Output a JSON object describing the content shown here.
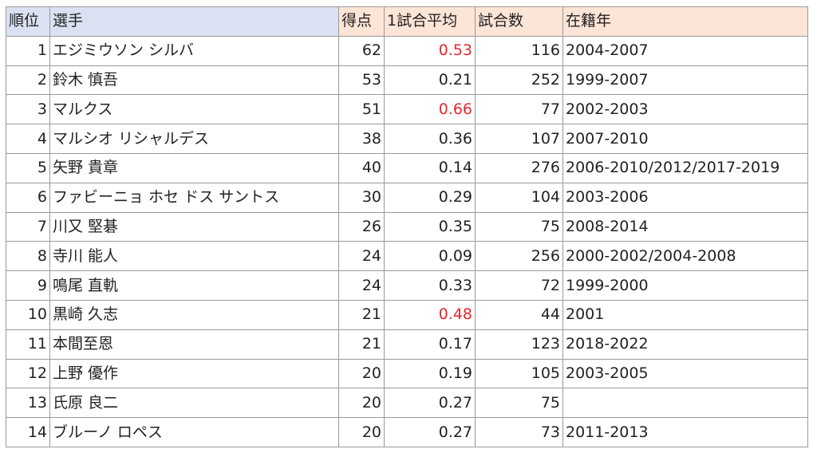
{
  "header": {
    "rank": "順位",
    "player": "選手",
    "goals": "得点",
    "avg": "1試合平均",
    "games": "試合数",
    "years": "在籍年"
  },
  "colors": {
    "header_blue": "#d9e1f2",
    "header_orange": "#fce4d6",
    "highlight_red": "#e8262e"
  },
  "rows": [
    {
      "rank": "1",
      "player": "エジミウソン シルバ",
      "goals": "62",
      "avg": "0.53",
      "games": "116",
      "years": "2004-2007",
      "highlight": true
    },
    {
      "rank": "2",
      "player": "鈴木 慎吾",
      "goals": "53",
      "avg": "0.21",
      "games": "252",
      "years": "1999-2007",
      "highlight": false
    },
    {
      "rank": "3",
      "player": "マルクス",
      "goals": "51",
      "avg": "0.66",
      "games": "77",
      "years": "2002-2003",
      "highlight": true
    },
    {
      "rank": "4",
      "player": "マルシオ リシャルデス",
      "goals": "38",
      "avg": "0.36",
      "games": "107",
      "years": "2007-2010",
      "highlight": false
    },
    {
      "rank": "5",
      "player": "矢野 貴章",
      "goals": "40",
      "avg": "0.14",
      "games": "276",
      "years": "2006-2010/2012/2017-2019",
      "highlight": false
    },
    {
      "rank": "6",
      "player": "ファビーニョ ホセ ドス サントス",
      "goals": "30",
      "avg": "0.29",
      "games": "104",
      "years": "2003-2006",
      "highlight": false
    },
    {
      "rank": "7",
      "player": "川又 堅碁",
      "goals": "26",
      "avg": "0.35",
      "games": "75",
      "years": "2008-2014",
      "highlight": false
    },
    {
      "rank": "8",
      "player": "寺川 能人",
      "goals": "24",
      "avg": "0.09",
      "games": "256",
      "years": "2000-2002/2004-2008",
      "highlight": false
    },
    {
      "rank": "9",
      "player": "鳴尾 直軌",
      "goals": "24",
      "avg": "0.33",
      "games": "72",
      "years": "1999-2000",
      "highlight": false
    },
    {
      "rank": "10",
      "player": "黒崎 久志",
      "goals": "21",
      "avg": "0.48",
      "games": "44",
      "years": "2001",
      "highlight": true
    },
    {
      "rank": "11",
      "player": "本間至恩",
      "goals": "21",
      "avg": "0.17",
      "games": "123",
      "years": "2018-2022",
      "highlight": false
    },
    {
      "rank": "12",
      "player": "上野 優作",
      "goals": "20",
      "avg": "0.19",
      "games": "105",
      "years": "2003-2005",
      "highlight": false
    },
    {
      "rank": "13",
      "player": "氏原 良二",
      "goals": "20",
      "avg": "0.27",
      "games": "75",
      "years": "",
      "highlight": false
    },
    {
      "rank": "14",
      "player": "ブルーノ ロペス",
      "goals": "20",
      "avg": "0.27",
      "games": "73",
      "years": "2011-2013",
      "highlight": false
    }
  ]
}
